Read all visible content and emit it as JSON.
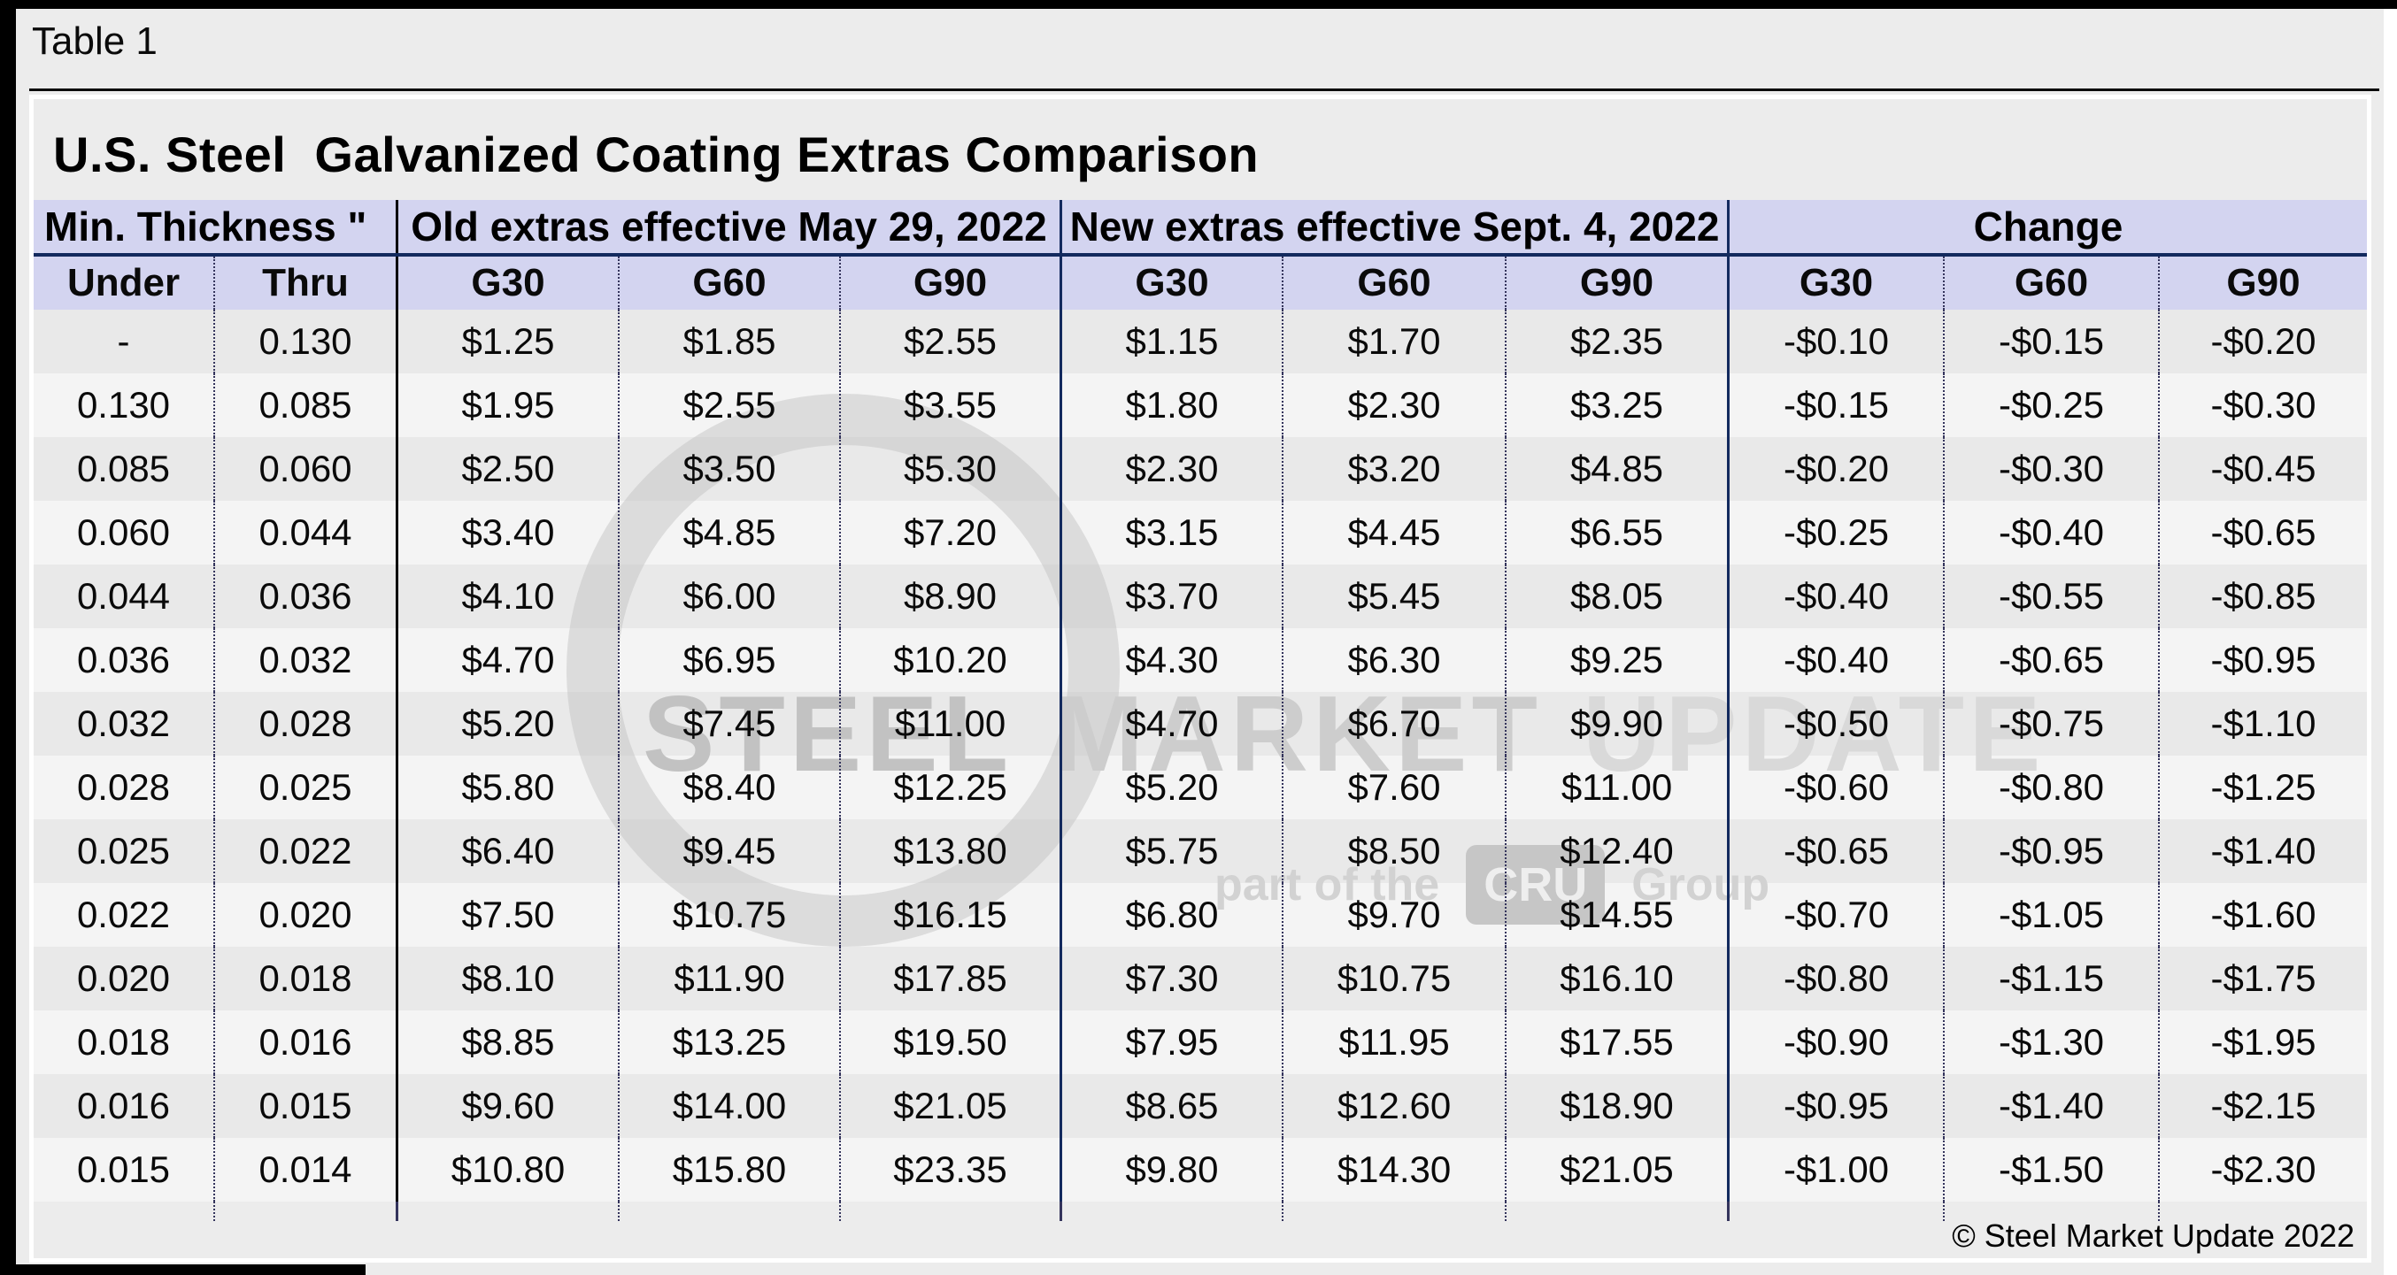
{
  "page": {
    "table_label": "Table 1",
    "title": "U.S. Steel  Galvanized Coating Extras Comparison",
    "footer": "© Steel Market Update 2022"
  },
  "table": {
    "groups": [
      {
        "label": "Min. Thickness \""
      },
      {
        "label": "Old extras effective May 29, 2022"
      },
      {
        "label": "New extras effective Sept. 4, 2022"
      },
      {
        "label": "Change"
      }
    ],
    "sub_headers": [
      "Under",
      "Thru",
      "G30",
      "G60",
      "G90",
      "G30",
      "G60",
      "G90",
      "G30",
      "G60",
      "G90"
    ],
    "rows": [
      [
        "-",
        "0.130",
        "$1.25",
        "$1.85",
        "$2.55",
        "$1.15",
        "$1.70",
        "$2.35",
        "-$0.10",
        "-$0.15",
        "-$0.20"
      ],
      [
        "0.130",
        "0.085",
        "$1.95",
        "$2.55",
        "$3.55",
        "$1.80",
        "$2.30",
        "$3.25",
        "-$0.15",
        "-$0.25",
        "-$0.30"
      ],
      [
        "0.085",
        "0.060",
        "$2.50",
        "$3.50",
        "$5.30",
        "$2.30",
        "$3.20",
        "$4.85",
        "-$0.20",
        "-$0.30",
        "-$0.45"
      ],
      [
        "0.060",
        "0.044",
        "$3.40",
        "$4.85",
        "$7.20",
        "$3.15",
        "$4.45",
        "$6.55",
        "-$0.25",
        "-$0.40",
        "-$0.65"
      ],
      [
        "0.044",
        "0.036",
        "$4.10",
        "$6.00",
        "$8.90",
        "$3.70",
        "$5.45",
        "$8.05",
        "-$0.40",
        "-$0.55",
        "-$0.85"
      ],
      [
        "0.036",
        "0.032",
        "$4.70",
        "$6.95",
        "$10.20",
        "$4.30",
        "$6.30",
        "$9.25",
        "-$0.40",
        "-$0.65",
        "-$0.95"
      ],
      [
        "0.032",
        "0.028",
        "$5.20",
        "$7.45",
        "$11.00",
        "$4.70",
        "$6.70",
        "$9.90",
        "-$0.50",
        "-$0.75",
        "-$1.10"
      ],
      [
        "0.028",
        "0.025",
        "$5.80",
        "$8.40",
        "$12.25",
        "$5.20",
        "$7.60",
        "$11.00",
        "-$0.60",
        "-$0.80",
        "-$1.25"
      ],
      [
        "0.025",
        "0.022",
        "$6.40",
        "$9.45",
        "$13.80",
        "$5.75",
        "$8.50",
        "$12.40",
        "-$0.65",
        "-$0.95",
        "-$1.40"
      ],
      [
        "0.022",
        "0.020",
        "$7.50",
        "$10.75",
        "$16.15",
        "$6.80",
        "$9.70",
        "$14.55",
        "-$0.70",
        "-$1.05",
        "-$1.60"
      ],
      [
        "0.020",
        "0.018",
        "$8.10",
        "$11.90",
        "$17.85",
        "$7.30",
        "$10.75",
        "$16.10",
        "-$0.80",
        "-$1.15",
        "-$1.75"
      ],
      [
        "0.018",
        "0.016",
        "$8.85",
        "$13.25",
        "$19.50",
        "$7.95",
        "$11.95",
        "$17.55",
        "-$0.90",
        "-$1.30",
        "-$1.95"
      ],
      [
        "0.016",
        "0.015",
        "$9.60",
        "$14.00",
        "$21.05",
        "$8.65",
        "$12.60",
        "$18.90",
        "-$0.95",
        "-$1.40",
        "-$2.15"
      ],
      [
        "0.015",
        "0.014",
        "$10.80",
        "$15.80",
        "$23.35",
        "$9.80",
        "$14.30",
        "$21.05",
        "-$1.00",
        "-$1.50",
        "-$2.30"
      ]
    ]
  },
  "watermark": {
    "word1": "STEEL",
    "word2": "MARKET",
    "word3": "UPDATE",
    "tagline_prefix": "part of the",
    "logo": "CRU",
    "tagline_suffix": "Group"
  },
  "colors": {
    "header_bg": "#d3d4f0",
    "navy_border": "#132a5e",
    "row_odd": "#e9e9e9",
    "row_even": "#f4f4f4",
    "canvas_bg": "#ececec"
  }
}
